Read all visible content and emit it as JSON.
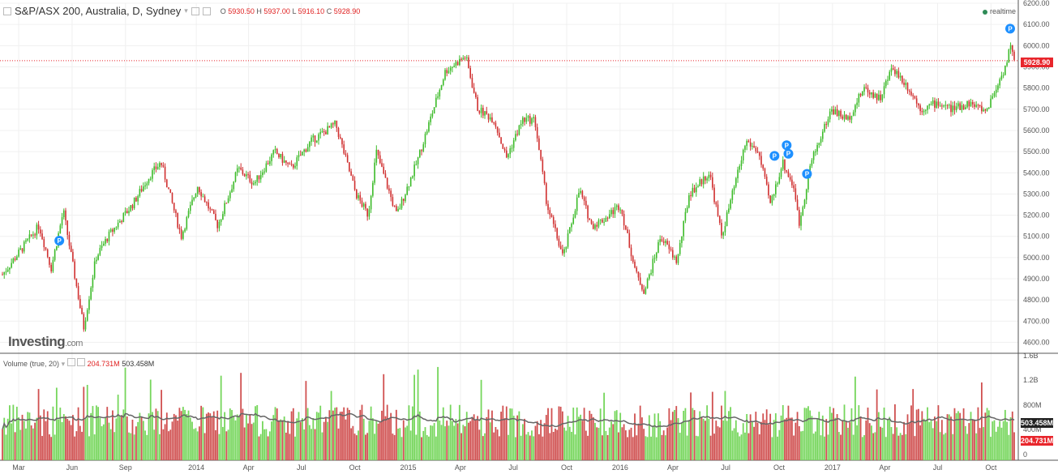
{
  "header": {
    "symbol": "S&P/ASX 200, Australia, D, Sydney",
    "open": "5930.50",
    "high": "5937.00",
    "low": "5916.10",
    "close": "5928.90",
    "o": "O",
    "h": "H",
    "l": "L",
    "c": "C"
  },
  "realtime": "realtime",
  "logo": {
    "main": "Investing",
    "suffix": ".com"
  },
  "volume_header": {
    "label": "Volume (true, 20)",
    "v1": "204.731M",
    "v2": "503.458M"
  },
  "price_tag": {
    "value": "5928.90",
    "color": "#e8262c"
  },
  "vol_tags": [
    {
      "value": "503.458M",
      "color": "#222222"
    },
    {
      "value": "204.731M",
      "color": "#e8262c"
    }
  ],
  "colors": {
    "up": "#3dbb2a",
    "down": "#d03030",
    "vol_up": "#76d65c",
    "vol_down": "#d05050",
    "ma": "#666666"
  },
  "chart_data": {
    "type": "bar",
    "title": "S&P/ASX 200, Australia, D, Sydney",
    "y_ticks": [
      "6200.00",
      "6100.00",
      "6000.00",
      "5900.00",
      "5800.00",
      "5700.00",
      "5600.00",
      "5500.00",
      "5400.00",
      "5300.00",
      "5200.00",
      "5100.00",
      "5000.00",
      "4900.00",
      "4800.00",
      "4700.00",
      "4600.00"
    ],
    "ylim": [
      4560,
      6200
    ],
    "vol_ticks": [
      "1.6B",
      "1.2B",
      "800M",
      "400M",
      "0"
    ],
    "x_labels": [
      "Mar",
      "Jun",
      "Sep",
      "2014",
      "Apr",
      "Jul",
      "Oct",
      "2015",
      "Apr",
      "Jul",
      "Oct",
      "2016",
      "Apr",
      "Jul",
      "Oct",
      "2017",
      "Apr",
      "Jul",
      "Oct"
    ],
    "price_path": [
      [
        "2013-02-01",
        4920
      ],
      [
        "2013-04-05",
        5150
      ],
      [
        "2013-04-26",
        4950
      ],
      [
        "2013-05-17",
        5220
      ],
      [
        "2013-06-21",
        4670
      ],
      [
        "2013-07-12",
        5000
      ],
      [
        "2013-08-02",
        5100
      ],
      [
        "2013-09-13",
        5250
      ],
      [
        "2013-10-11",
        5380
      ],
      [
        "2013-11-01",
        5450
      ],
      [
        "2013-12-06",
        5100
      ],
      [
        "2014-01-03",
        5340
      ],
      [
        "2014-02-07",
        5150
      ],
      [
        "2014-03-14",
        5420
      ],
      [
        "2014-04-11",
        5350
      ],
      [
        "2014-05-16",
        5500
      ],
      [
        "2014-06-13",
        5420
      ],
      [
        "2014-07-18",
        5550
      ],
      [
        "2014-08-29",
        5630
      ],
      [
        "2014-10-03",
        5300
      ],
      [
        "2014-10-24",
        5200
      ],
      [
        "2014-11-07",
        5500
      ],
      [
        "2014-12-12",
        5200
      ],
      [
        "2015-01-16",
        5450
      ],
      [
        "2015-03-06",
        5880
      ],
      [
        "2015-04-10",
        5950
      ],
      [
        "2015-05-01",
        5700
      ],
      [
        "2015-05-29",
        5650
      ],
      [
        "2015-06-19",
        5470
      ],
      [
        "2015-07-17",
        5650
      ],
      [
        "2015-08-07",
        5650
      ],
      [
        "2015-08-28",
        5250
      ],
      [
        "2015-09-25",
        5000
      ],
      [
        "2015-10-23",
        5320
      ],
      [
        "2015-11-13",
        5150
      ],
      [
        "2015-12-04",
        5180
      ],
      [
        "2016-01-01",
        5250
      ],
      [
        "2016-01-29",
        4920
      ],
      [
        "2016-02-12",
        4840
      ],
      [
        "2016-03-11",
        5100
      ],
      [
        "2016-04-08",
        4980
      ],
      [
        "2016-04-29",
        5300
      ],
      [
        "2016-06-03",
        5400
      ],
      [
        "2016-06-24",
        5100
      ],
      [
        "2016-08-05",
        5550
      ],
      [
        "2016-08-26",
        5500
      ],
      [
        "2016-09-16",
        5250
      ],
      [
        "2016-10-07",
        5450
      ],
      [
        "2016-10-28",
        5320
      ],
      [
        "2016-11-04",
        5150
      ],
      [
        "2016-11-25",
        5450
      ],
      [
        "2016-12-30",
        5700
      ],
      [
        "2017-01-27",
        5650
      ],
      [
        "2017-02-24",
        5800
      ],
      [
        "2017-03-24",
        5750
      ],
      [
        "2017-04-14",
        5900
      ],
      [
        "2017-05-12",
        5800
      ],
      [
        "2017-06-02",
        5700
      ],
      [
        "2017-06-30",
        5730
      ],
      [
        "2017-07-28",
        5700
      ],
      [
        "2017-08-25",
        5730
      ],
      [
        "2017-09-22",
        5690
      ],
      [
        "2017-10-13",
        5820
      ],
      [
        "2017-10-27",
        5910
      ],
      [
        "2017-11-03",
        6000
      ],
      [
        "2017-11-10",
        5929
      ]
    ],
    "flags": [
      {
        "date": "2013-05-10",
        "price": 5080,
        "label": "P"
      },
      {
        "date": "2016-09-23",
        "price": 5480,
        "label": "P"
      },
      {
        "date": "2016-10-14",
        "price": 5530,
        "label": "P"
      },
      {
        "date": "2016-10-17",
        "price": 5490,
        "label": "P"
      },
      {
        "date": "2016-11-18",
        "price": 5395,
        "label": "P"
      },
      {
        "date": "2017-11-03",
        "price": 6080,
        "label": "P"
      }
    ]
  }
}
